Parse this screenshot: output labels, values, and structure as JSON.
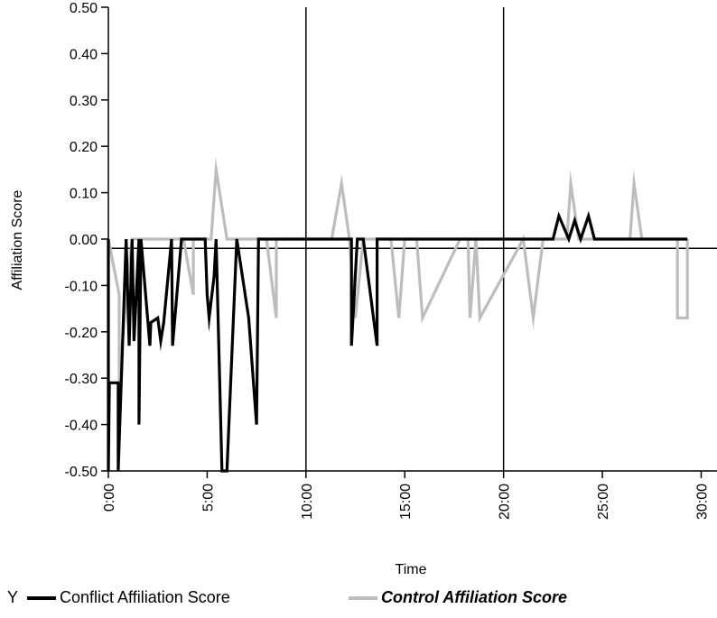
{
  "chart_data": {
    "type": "line",
    "xlabel": "Time",
    "ylabel": "Affiliation Score",
    "xlim": [
      0,
      30
    ],
    "ylim": [
      -0.5,
      0.5
    ],
    "x_ticks": [
      0,
      5,
      10,
      15,
      20,
      25,
      30
    ],
    "x_tick_labels": [
      "0:00",
      "5:00",
      "10:00",
      "15:00",
      "20:00",
      "25:00",
      "30:00"
    ],
    "y_ticks": [
      -0.5,
      -0.4,
      -0.3,
      -0.2,
      -0.1,
      0,
      0.1,
      0.2,
      0.3,
      0.4,
      0.5
    ],
    "y_tick_labels": [
      "-0.50",
      "-0.40",
      "-0.30",
      "-0.20",
      "-0.10",
      "0.00",
      "0.10",
      "0.20",
      "0.30",
      "0.40",
      "0.50"
    ],
    "reference_lines": {
      "horizontal_y": -0.02,
      "vertical_x": [
        10,
        20
      ]
    },
    "grid": false,
    "legend_prefix": "Y",
    "legend_position": "bottom",
    "series": [
      {
        "name": "Conflict Affiliation Score",
        "color": "#000000",
        "x": [
          0,
          0,
          0.05,
          0.5,
          0.5,
          0.9,
          1.05,
          1.2,
          1.3,
          1.55,
          1.55,
          1.65,
          2.1,
          2.15,
          2.5,
          2.65,
          2.8,
          3.2,
          3.25,
          3.7,
          4.2,
          4.9,
          5.0,
          5.1,
          5.35,
          5.45,
          5.75,
          6.0,
          6.5,
          7.1,
          7.5,
          7.6,
          8.5,
          12.0,
          12.3,
          12.3,
          12.6,
          12.9,
          13.6,
          13.6,
          14.0,
          22.5,
          22.8,
          23.3,
          23.6,
          23.9,
          24.3,
          24.6,
          29.3
        ],
        "y": [
          0,
          -0.5,
          -0.31,
          -0.31,
          -0.5,
          0,
          -0.23,
          0,
          -0.22,
          0,
          -0.4,
          0,
          -0.23,
          -0.18,
          -0.17,
          -0.22,
          -0.18,
          0,
          -0.23,
          0,
          0,
          0,
          -0.12,
          -0.17,
          -0.08,
          0,
          -0.5,
          -0.5,
          0,
          -0.17,
          -0.4,
          0,
          0,
          0,
          0,
          -0.23,
          0,
          0,
          -0.23,
          0,
          0,
          0,
          0.05,
          0,
          0.04,
          0,
          0.05,
          0,
          0
        ]
      },
      {
        "name": "Control Affiliation Score",
        "color": "#bdbdbd",
        "x": [
          0,
          0.55,
          0.55,
          0.9,
          1.2,
          3.8,
          4.3,
          4.3,
          5.2,
          5.45,
          6.0,
          8.0,
          8.5,
          8.5,
          11.3,
          11.8,
          12.2,
          12.5,
          12.9,
          14.0,
          14.3,
          14.7,
          15.0,
          15.6,
          15.9,
          17.8,
          18.2,
          18.3,
          18.6,
          18.8,
          21.0,
          21.5,
          22.0,
          23.2,
          23.4,
          23.8,
          24.0,
          26.4,
          26.6,
          27.0,
          28.8,
          28.8,
          29.3,
          29.3
        ],
        "y": [
          0,
          -0.12,
          -0.31,
          -0.12,
          0,
          0,
          -0.12,
          0,
          0,
          0.15,
          0,
          0,
          -0.17,
          0,
          0,
          0.12,
          0,
          -0.17,
          0,
          0,
          0,
          -0.17,
          0,
          0,
          -0.17,
          0,
          0,
          -0.17,
          0,
          -0.17,
          0,
          -0.17,
          0,
          0,
          0.12,
          0,
          0,
          0,
          0.12,
          0,
          0,
          -0.17,
          -0.17,
          0
        ]
      }
    ]
  }
}
